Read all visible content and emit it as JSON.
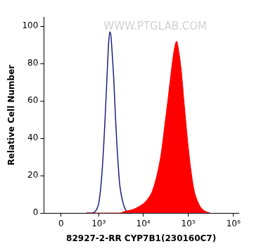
{
  "chart_data": {
    "type": "line",
    "x_label": "82927-2-RR CYP7B1(230160C7)",
    "y_label": "Relative Cell Number",
    "annotations": [
      {
        "text": "WWW.PTGLAB.COM"
      }
    ],
    "log": "x",
    "grid": false,
    "xlim": [
      -300,
      1300000
    ],
    "xticks": [
      0,
      {
        "value": 1000,
        "label": "10³"
      },
      {
        "value": 10000,
        "label": "10⁴"
      },
      {
        "value": 100000,
        "label": "10⁵"
      },
      {
        "value": 1000000,
        "label": "10⁶"
      }
    ],
    "ylim": [
      0,
      105
    ],
    "yticks": [
      0,
      20,
      40,
      60,
      80,
      100
    ],
    "x": [
      500,
      700,
      900,
      1000,
      1100,
      1200,
      1300,
      1400,
      1500,
      1600,
      1700,
      1800,
      1900,
      2000,
      2200,
      2400,
      2600,
      2800,
      3000,
      3500,
      4000,
      5000,
      6000,
      8000,
      10000,
      13000,
      16000,
      20000,
      25000,
      30000,
      35000,
      40000,
      45000,
      50000,
      55000,
      60000,
      70000,
      80000,
      100000,
      130000,
      170000,
      220000,
      300000
    ],
    "series": [
      {
        "type": "area",
        "color": "#ff0000",
        "values": [
          0,
          0,
          0,
          0,
          0,
          0,
          0,
          0,
          0,
          0,
          0,
          0,
          0,
          0,
          0,
          0,
          0,
          0,
          0,
          0.5,
          1,
          1.5,
          2,
          3.5,
          5,
          8,
          12,
          20,
          32,
          47,
          60,
          72,
          82,
          89,
          92,
          88,
          76,
          60,
          35,
          14,
          5,
          1.5,
          0
        ]
      },
      {
        "type": "line",
        "color": "#1a237e",
        "values": [
          0,
          0,
          2,
          5,
          12,
          22,
          35,
          50,
          65,
          80,
          92,
          97,
          95,
          88,
          72,
          52,
          36,
          24,
          15,
          6,
          2,
          0,
          0,
          0,
          0,
          0,
          0,
          0,
          0,
          0,
          0,
          0,
          0,
          0,
          0,
          0,
          0,
          0,
          0,
          0,
          0,
          0,
          0
        ]
      }
    ]
  }
}
